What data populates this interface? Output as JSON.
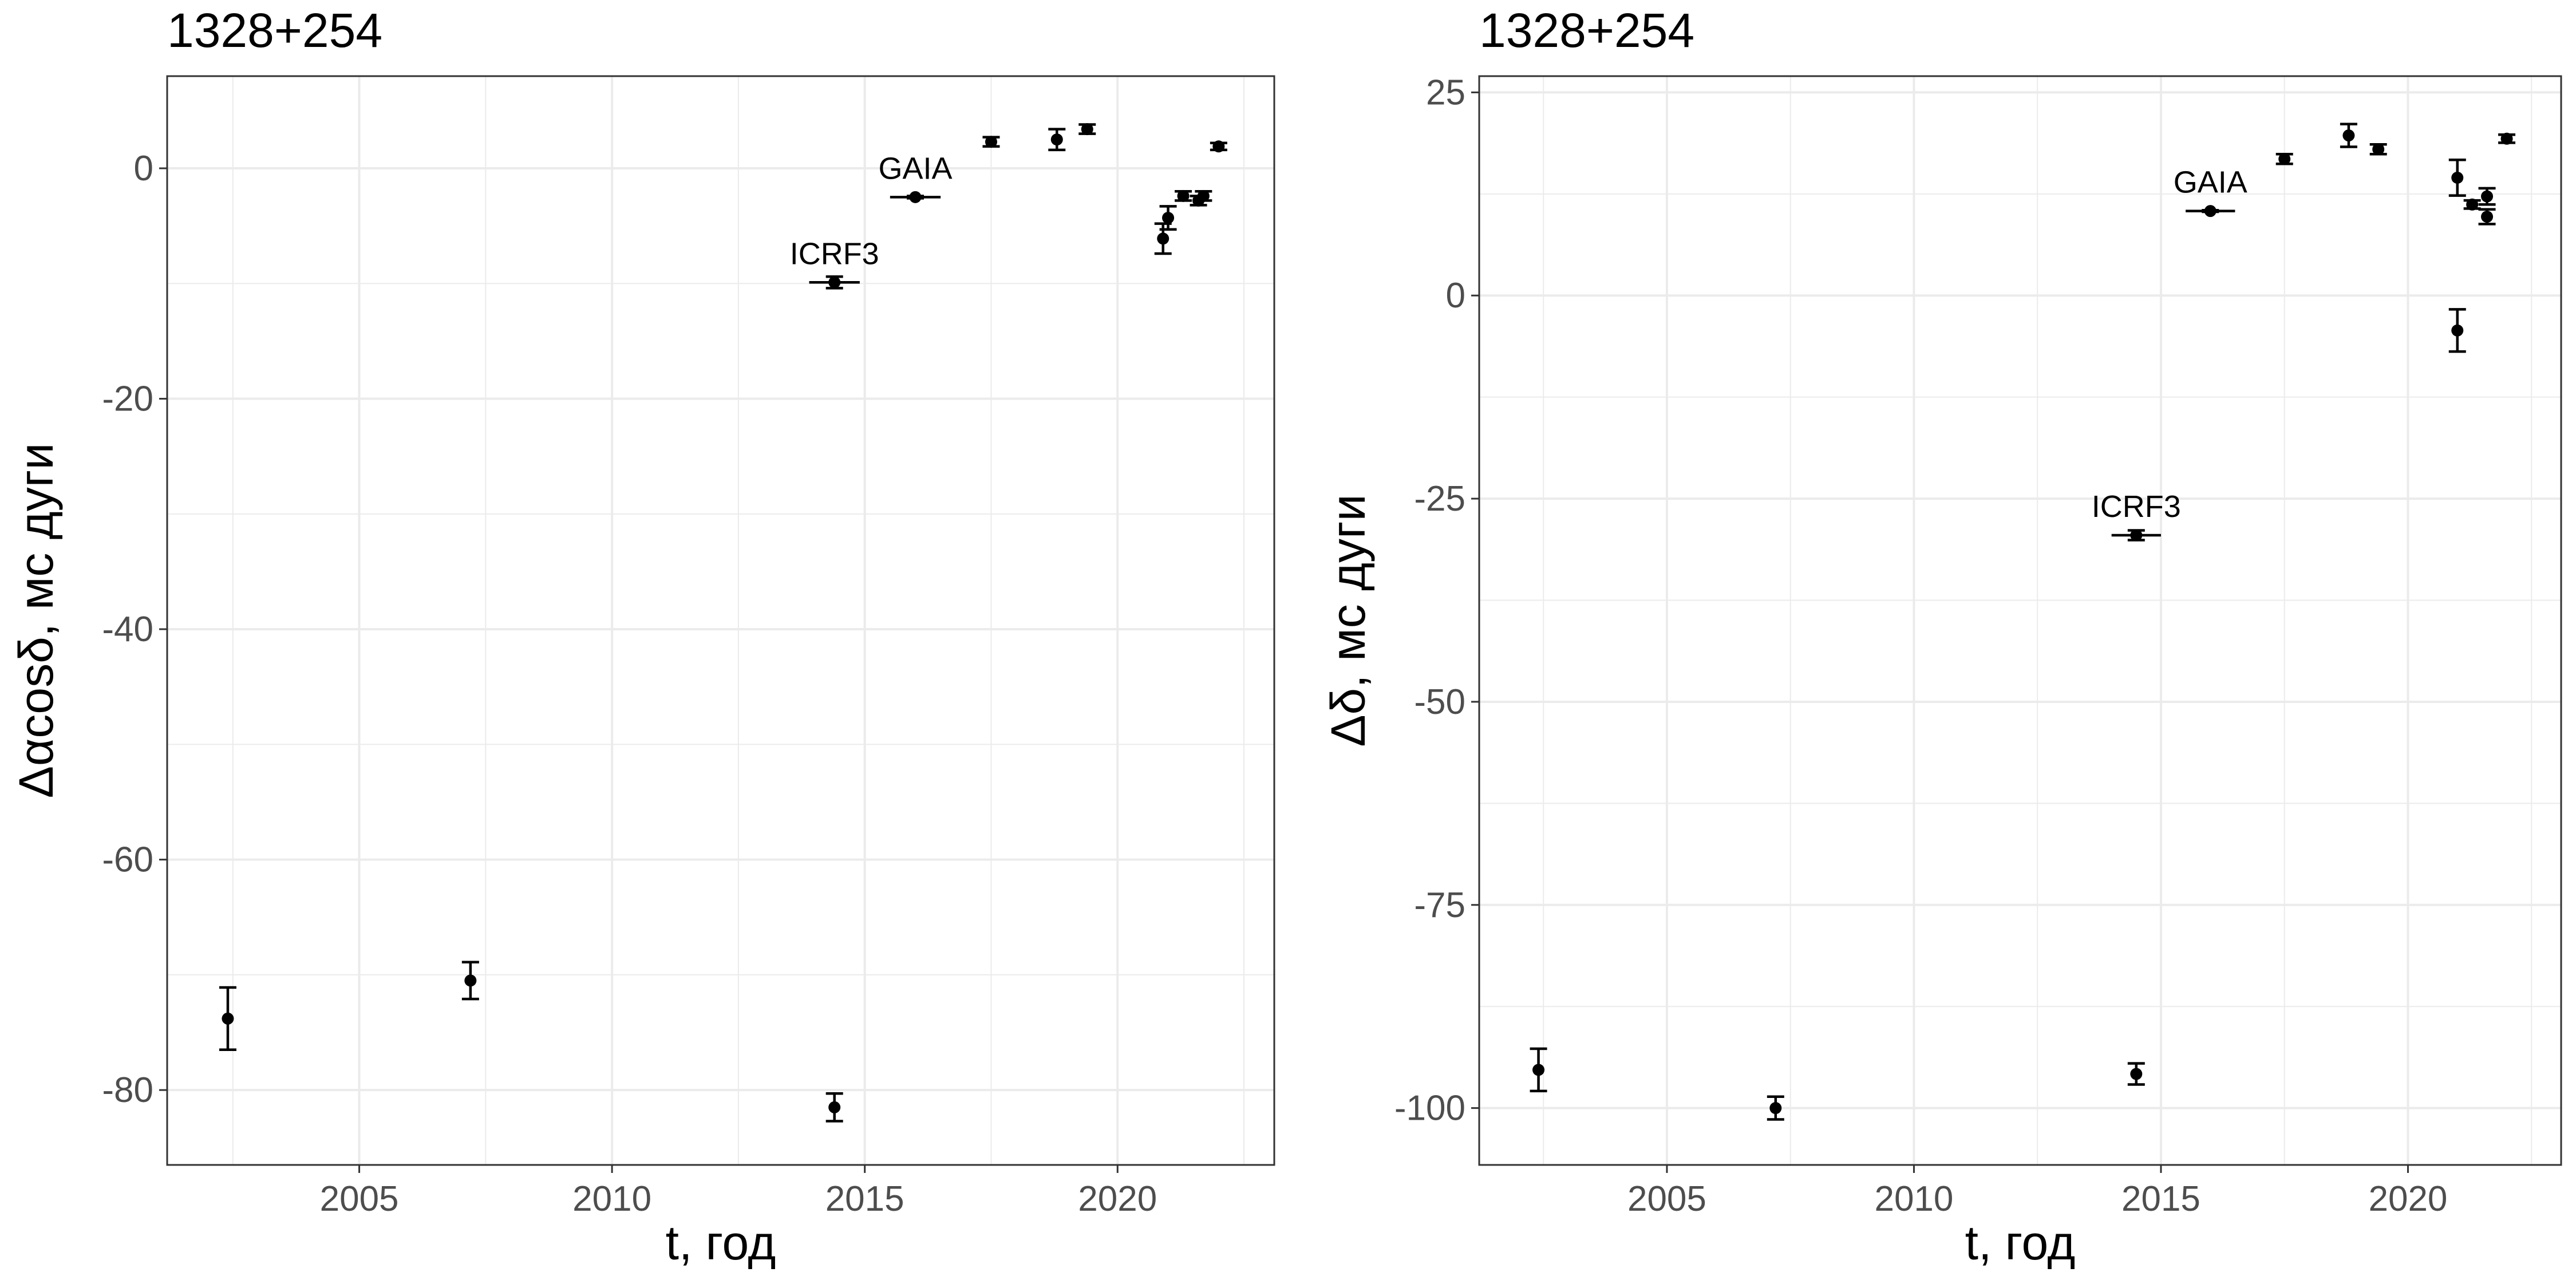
{
  "chart_data": [
    {
      "type": "scatter",
      "title": "1328+254",
      "xlabel": "t, год",
      "ylabel": "Δαcosδ, мс дуги",
      "xlim": [
        2001.2,
        2023.1
      ],
      "ylim": [
        -86.5,
        8.0
      ],
      "x_ticks": [
        2005,
        2010,
        2015,
        2020
      ],
      "x_tick_labels": [
        "2005",
        "2010",
        "2015",
        "2020"
      ],
      "y_ticks": [
        0,
        -20,
        -40,
        -60,
        -80
      ],
      "y_tick_labels": [
        "0",
        "-20",
        "-40",
        "-60",
        "-80"
      ],
      "grid": true,
      "series": [
        {
          "points": [
            {
              "x": 2002.4,
              "y": -73.8,
              "yerr": 2.7,
              "xerr": 0
            },
            {
              "x": 2007.2,
              "y": -70.5,
              "yerr": 1.6,
              "xerr": 0
            },
            {
              "x": 2014.4,
              "y": -81.5,
              "yerr": 1.2,
              "xerr": 0
            },
            {
              "x": 2014.4,
              "y": -9.9,
              "yerr": 0.5,
              "xerr": 0.5,
              "label": "ICRF3"
            },
            {
              "x": 2016.0,
              "y": -2.5,
              "yerr": 0.1,
              "xerr": 0.5,
              "label": "GAIA"
            },
            {
              "x": 2017.5,
              "y": 2.3,
              "yerr": 0.4,
              "xerr": 0
            },
            {
              "x": 2018.8,
              "y": 2.5,
              "yerr": 0.9,
              "xerr": 0
            },
            {
              "x": 2019.4,
              "y": 3.4,
              "yerr": 0.4,
              "xerr": 0
            },
            {
              "x": 2020.9,
              "y": -6.1,
              "yerr": 1.3,
              "xerr": 0
            },
            {
              "x": 2021.0,
              "y": -4.3,
              "yerr": 1.0,
              "xerr": 0
            },
            {
              "x": 2021.3,
              "y": -2.4,
              "yerr": 0.4,
              "xerr": 0
            },
            {
              "x": 2021.6,
              "y": -2.8,
              "yerr": 0.4,
              "xerr": 0
            },
            {
              "x": 2021.7,
              "y": -2.4,
              "yerr": 0.4,
              "xerr": 0
            },
            {
              "x": 2022.0,
              "y": 1.9,
              "yerr": 0.3,
              "xerr": 0
            }
          ]
        }
      ]
    },
    {
      "type": "scatter",
      "title": "1328+254",
      "xlabel": "t, год",
      "ylabel": "Δδ, мс дуги",
      "xlim": [
        2001.2,
        2023.1
      ],
      "ylim": [
        -107.0,
        27.0
      ],
      "x_ticks": [
        2005,
        2010,
        2015,
        2020
      ],
      "x_tick_labels": [
        "2005",
        "2010",
        "2015",
        "2020"
      ],
      "y_ticks": [
        25,
        0,
        -25,
        -50,
        -75,
        -100
      ],
      "y_tick_labels": [
        "25",
        "0",
        "-25",
        "-50",
        "-75",
        "-100"
      ],
      "grid": true,
      "series": [
        {
          "points": [
            {
              "x": 2002.4,
              "y": -95.3,
              "yerr": 2.6,
              "xerr": 0
            },
            {
              "x": 2007.2,
              "y": -100.0,
              "yerr": 1.4,
              "xerr": 0
            },
            {
              "x": 2014.5,
              "y": -95.8,
              "yerr": 1.3,
              "xerr": 0
            },
            {
              "x": 2014.5,
              "y": -29.5,
              "yerr": 0.6,
              "xerr": 0.5,
              "label": "ICRF3"
            },
            {
              "x": 2016.0,
              "y": 10.4,
              "yerr": 0.1,
              "xerr": 0.5,
              "label": "GAIA"
            },
            {
              "x": 2017.5,
              "y": 16.8,
              "yerr": 0.6,
              "xerr": 0
            },
            {
              "x": 2018.8,
              "y": 19.7,
              "yerr": 1.4,
              "xerr": 0
            },
            {
              "x": 2019.4,
              "y": 18.0,
              "yerr": 0.6,
              "xerr": 0
            },
            {
              "x": 2021.0,
              "y": -4.3,
              "yerr": 2.6,
              "xerr": 0
            },
            {
              "x": 2021.0,
              "y": 14.5,
              "yerr": 2.2,
              "xerr": 0
            },
            {
              "x": 2021.3,
              "y": 11.2,
              "yerr": 0.5,
              "xerr": 0
            },
            {
              "x": 2021.6,
              "y": 12.2,
              "yerr": 1.0,
              "xerr": 0
            },
            {
              "x": 2021.6,
              "y": 9.7,
              "yerr": 0.9,
              "xerr": 0
            },
            {
              "x": 2022.0,
              "y": 19.3,
              "yerr": 0.5,
              "xerr": 0
            }
          ]
        }
      ]
    }
  ]
}
